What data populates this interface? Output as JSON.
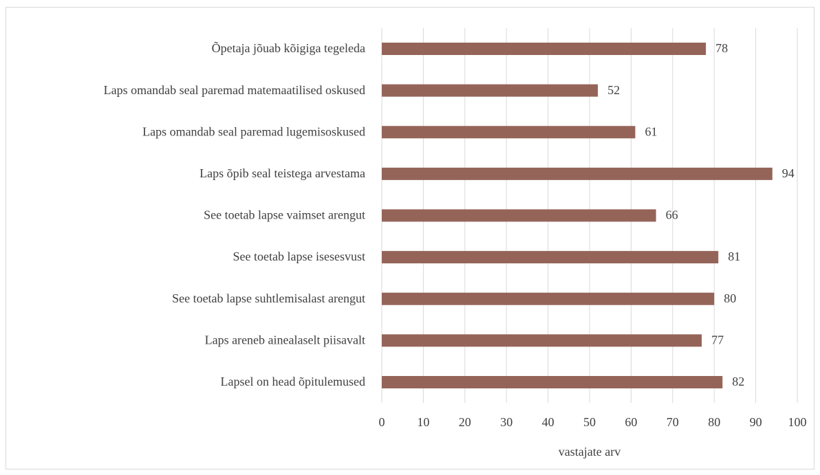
{
  "chart_data": {
    "type": "bar",
    "orientation": "horizontal",
    "categories": [
      "Õpetaja jõuab kõigiga tegeleda",
      "Laps omandab seal paremad matemaatilised oskused",
      "Laps omandab seal paremad lugemisoskused",
      "Laps õpib seal teistega arvestama",
      "See toetab lapse vaimset arengut",
      "See toetab lapse isesesvust",
      "See toetab lapse suhtlemisalast arengut",
      "Laps areneb ainealaselt piisavalt",
      "Lapsel on head õpitulemused"
    ],
    "values": [
      78,
      52,
      61,
      94,
      66,
      81,
      80,
      77,
      82
    ],
    "color": "#956459",
    "xlabel": "vastajate arv",
    "xlim": [
      0,
      100
    ],
    "xticks": [
      0,
      10,
      20,
      30,
      40,
      50,
      60,
      70,
      80,
      90,
      100
    ],
    "grid": true
  }
}
